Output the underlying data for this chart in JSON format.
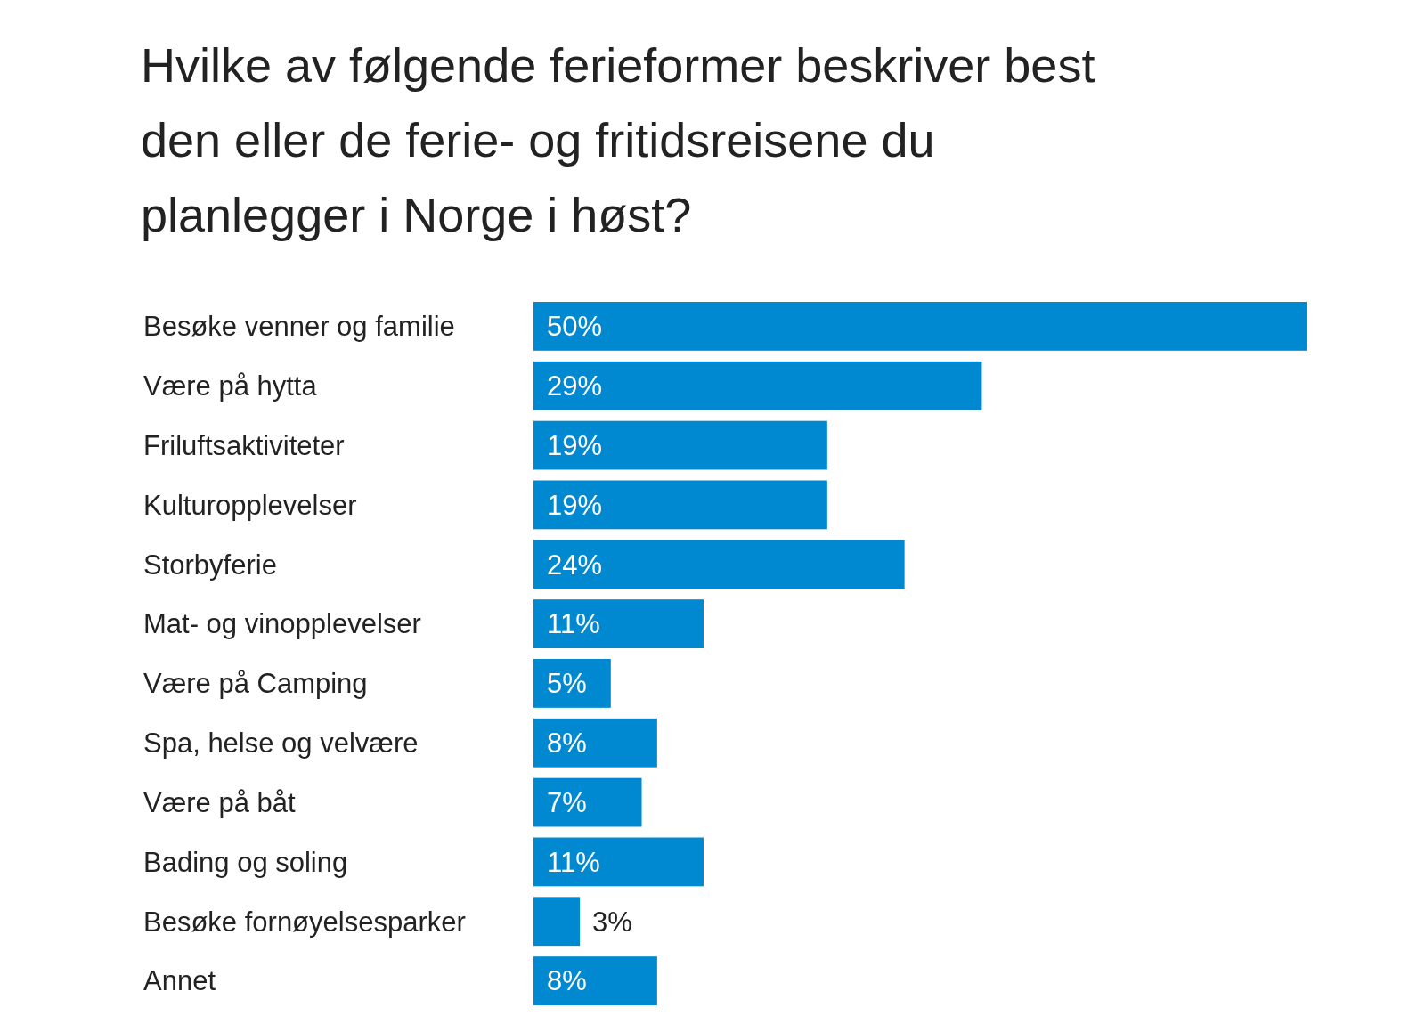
{
  "chart_data": {
    "type": "bar",
    "orientation": "horizontal",
    "title": "Hvilke av følgende ferieformer beskriver best den eller de ferie- og fritidsreisene du planlegger i Norge i høst?",
    "categories": [
      "Besøke venner og familie",
      "Være på hytta",
      "Friluftsaktiviteter",
      "Kulturopplevelser",
      "Storbyferie",
      "Mat- og vinopplevelser",
      "Være på Camping",
      "Spa, helse og velvære",
      "Være på båt",
      "Bading og soling",
      "Besøke fornøyelsesparker",
      "Annet"
    ],
    "values": [
      50,
      29,
      19,
      19,
      24,
      11,
      5,
      8,
      7,
      11,
      3,
      8
    ],
    "value_labels": [
      "50%",
      "29%",
      "19%",
      "19%",
      "24%",
      "11%",
      "5%",
      "8%",
      "7%",
      "11%",
      "3%",
      "8%"
    ],
    "color": "#0088d1"
  }
}
